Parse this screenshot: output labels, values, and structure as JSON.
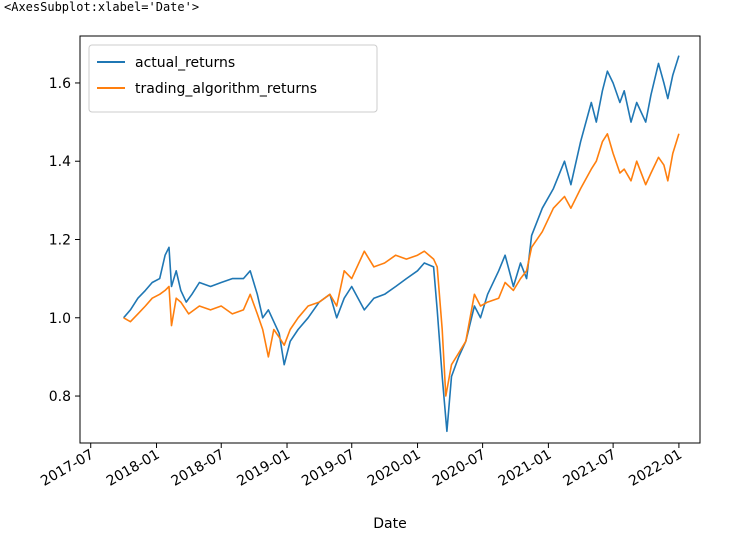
{
  "repr_text": "<AxesSubplot:xlabel='Date'>",
  "chart_data": {
    "type": "line",
    "title": "",
    "xlabel": "Date",
    "ylabel": "",
    "x_range": [
      "2017-06-01",
      "2022-03-01"
    ],
    "ylim": [
      0.68,
      1.72
    ],
    "grid": false,
    "legend_position": "top-left",
    "x_ticks": [
      {
        "date": "2017-07-01",
        "label": "2017-07"
      },
      {
        "date": "2018-01-01",
        "label": "2018-01"
      },
      {
        "date": "2018-07-01",
        "label": "2018-07"
      },
      {
        "date": "2019-01-01",
        "label": "2019-01"
      },
      {
        "date": "2019-07-01",
        "label": "2019-07"
      },
      {
        "date": "2020-01-01",
        "label": "2020-01"
      },
      {
        "date": "2020-07-01",
        "label": "2020-07"
      },
      {
        "date": "2021-01-01",
        "label": "2021-01"
      },
      {
        "date": "2021-07-01",
        "label": "2021-07"
      },
      {
        "date": "2022-01-01",
        "label": "2022-01"
      }
    ],
    "y_ticks": [
      {
        "value": 0.8,
        "label": "0.8"
      },
      {
        "value": 1.0,
        "label": "1.0"
      },
      {
        "value": 1.2,
        "label": "1.2"
      },
      {
        "value": 1.4,
        "label": "1.4"
      },
      {
        "value": 1.6,
        "label": "1.6"
      }
    ],
    "series": [
      {
        "name": "actual_returns",
        "color": "#1f77b4",
        "points": [
          [
            "2017-10-01",
            1.0
          ],
          [
            "2017-10-20",
            1.02
          ],
          [
            "2017-11-10",
            1.05
          ],
          [
            "2017-12-01",
            1.07
          ],
          [
            "2017-12-20",
            1.09
          ],
          [
            "2018-01-10",
            1.1
          ],
          [
            "2018-01-25",
            1.16
          ],
          [
            "2018-02-05",
            1.18
          ],
          [
            "2018-02-12",
            1.08
          ],
          [
            "2018-02-25",
            1.12
          ],
          [
            "2018-03-10",
            1.07
          ],
          [
            "2018-03-25",
            1.04
          ],
          [
            "2018-04-10",
            1.06
          ],
          [
            "2018-05-01",
            1.09
          ],
          [
            "2018-06-01",
            1.08
          ],
          [
            "2018-07-01",
            1.09
          ],
          [
            "2018-08-01",
            1.1
          ],
          [
            "2018-09-01",
            1.1
          ],
          [
            "2018-09-20",
            1.12
          ],
          [
            "2018-10-10",
            1.06
          ],
          [
            "2018-10-25",
            1.0
          ],
          [
            "2018-11-10",
            1.02
          ],
          [
            "2018-11-25",
            0.99
          ],
          [
            "2018-12-10",
            0.96
          ],
          [
            "2018-12-24",
            0.88
          ],
          [
            "2019-01-10",
            0.94
          ],
          [
            "2019-02-01",
            0.97
          ],
          [
            "2019-03-01",
            1.0
          ],
          [
            "2019-04-01",
            1.04
          ],
          [
            "2019-05-01",
            1.06
          ],
          [
            "2019-05-20",
            1.0
          ],
          [
            "2019-06-10",
            1.05
          ],
          [
            "2019-07-01",
            1.08
          ],
          [
            "2019-08-05",
            1.02
          ],
          [
            "2019-09-01",
            1.05
          ],
          [
            "2019-10-01",
            1.06
          ],
          [
            "2019-11-01",
            1.08
          ],
          [
            "2019-12-01",
            1.1
          ],
          [
            "2020-01-01",
            1.12
          ],
          [
            "2020-01-20",
            1.14
          ],
          [
            "2020-02-15",
            1.13
          ],
          [
            "2020-02-25",
            1.02
          ],
          [
            "2020-03-10",
            0.85
          ],
          [
            "2020-03-23",
            0.71
          ],
          [
            "2020-04-05",
            0.85
          ],
          [
            "2020-04-25",
            0.9
          ],
          [
            "2020-05-15",
            0.94
          ],
          [
            "2020-06-08",
            1.03
          ],
          [
            "2020-06-25",
            1.0
          ],
          [
            "2020-07-15",
            1.06
          ],
          [
            "2020-08-15",
            1.12
          ],
          [
            "2020-09-02",
            1.16
          ],
          [
            "2020-09-25",
            1.08
          ],
          [
            "2020-10-15",
            1.14
          ],
          [
            "2020-11-01",
            1.1
          ],
          [
            "2020-11-15",
            1.21
          ],
          [
            "2020-12-15",
            1.28
          ],
          [
            "2021-01-15",
            1.33
          ],
          [
            "2021-02-15",
            1.4
          ],
          [
            "2021-03-05",
            1.34
          ],
          [
            "2021-04-01",
            1.45
          ],
          [
            "2021-05-01",
            1.55
          ],
          [
            "2021-05-15",
            1.5
          ],
          [
            "2021-06-01",
            1.58
          ],
          [
            "2021-06-15",
            1.63
          ],
          [
            "2021-07-01",
            1.6
          ],
          [
            "2021-07-20",
            1.55
          ],
          [
            "2021-08-01",
            1.58
          ],
          [
            "2021-08-20",
            1.5
          ],
          [
            "2021-09-05",
            1.55
          ],
          [
            "2021-09-30",
            1.5
          ],
          [
            "2021-10-15",
            1.57
          ],
          [
            "2021-11-05",
            1.65
          ],
          [
            "2021-11-20",
            1.6
          ],
          [
            "2021-12-01",
            1.56
          ],
          [
            "2021-12-15",
            1.62
          ],
          [
            "2022-01-01",
            1.67
          ]
        ]
      },
      {
        "name": "trading_algorithm_returns",
        "color": "#ff7f0e",
        "points": [
          [
            "2017-10-01",
            1.0
          ],
          [
            "2017-10-20",
            0.99
          ],
          [
            "2017-11-10",
            1.01
          ],
          [
            "2017-12-01",
            1.03
          ],
          [
            "2017-12-20",
            1.05
          ],
          [
            "2018-01-10",
            1.06
          ],
          [
            "2018-01-25",
            1.07
          ],
          [
            "2018-02-05",
            1.08
          ],
          [
            "2018-02-12",
            0.98
          ],
          [
            "2018-02-25",
            1.05
          ],
          [
            "2018-03-10",
            1.04
          ],
          [
            "2018-04-01",
            1.01
          ],
          [
            "2018-05-01",
            1.03
          ],
          [
            "2018-06-01",
            1.02
          ],
          [
            "2018-07-01",
            1.03
          ],
          [
            "2018-08-01",
            1.01
          ],
          [
            "2018-09-01",
            1.02
          ],
          [
            "2018-09-20",
            1.06
          ],
          [
            "2018-10-10",
            1.01
          ],
          [
            "2018-10-25",
            0.97
          ],
          [
            "2018-11-10",
            0.9
          ],
          [
            "2018-11-25",
            0.97
          ],
          [
            "2018-12-10",
            0.95
          ],
          [
            "2018-12-24",
            0.93
          ],
          [
            "2019-01-10",
            0.97
          ],
          [
            "2019-02-01",
            1.0
          ],
          [
            "2019-03-01",
            1.03
          ],
          [
            "2019-04-01",
            1.04
          ],
          [
            "2019-05-01",
            1.06
          ],
          [
            "2019-05-20",
            1.03
          ],
          [
            "2019-06-10",
            1.12
          ],
          [
            "2019-07-01",
            1.1
          ],
          [
            "2019-08-05",
            1.17
          ],
          [
            "2019-09-01",
            1.13
          ],
          [
            "2019-10-01",
            1.14
          ],
          [
            "2019-11-01",
            1.16
          ],
          [
            "2019-12-01",
            1.15
          ],
          [
            "2020-01-01",
            1.16
          ],
          [
            "2020-01-20",
            1.17
          ],
          [
            "2020-02-15",
            1.15
          ],
          [
            "2020-02-25",
            1.13
          ],
          [
            "2020-03-10",
            0.97
          ],
          [
            "2020-03-20",
            0.8
          ],
          [
            "2020-04-05",
            0.88
          ],
          [
            "2020-04-25",
            0.91
          ],
          [
            "2020-05-15",
            0.94
          ],
          [
            "2020-06-08",
            1.06
          ],
          [
            "2020-06-25",
            1.03
          ],
          [
            "2020-07-15",
            1.04
          ],
          [
            "2020-08-15",
            1.05
          ],
          [
            "2020-09-02",
            1.09
          ],
          [
            "2020-09-25",
            1.07
          ],
          [
            "2020-10-15",
            1.1
          ],
          [
            "2020-11-01",
            1.12
          ],
          [
            "2020-11-15",
            1.18
          ],
          [
            "2020-12-15",
            1.22
          ],
          [
            "2021-01-15",
            1.28
          ],
          [
            "2021-02-15",
            1.31
          ],
          [
            "2021-03-05",
            1.28
          ],
          [
            "2021-04-01",
            1.33
          ],
          [
            "2021-05-01",
            1.38
          ],
          [
            "2021-05-15",
            1.4
          ],
          [
            "2021-06-01",
            1.45
          ],
          [
            "2021-06-15",
            1.47
          ],
          [
            "2021-07-01",
            1.42
          ],
          [
            "2021-07-20",
            1.37
          ],
          [
            "2021-08-01",
            1.38
          ],
          [
            "2021-08-20",
            1.35
          ],
          [
            "2021-09-05",
            1.4
          ],
          [
            "2021-09-30",
            1.34
          ],
          [
            "2021-10-15",
            1.37
          ],
          [
            "2021-11-05",
            1.41
          ],
          [
            "2021-11-20",
            1.39
          ],
          [
            "2021-12-01",
            1.35
          ],
          [
            "2021-12-15",
            1.42
          ],
          [
            "2022-01-01",
            1.47
          ]
        ]
      }
    ]
  }
}
